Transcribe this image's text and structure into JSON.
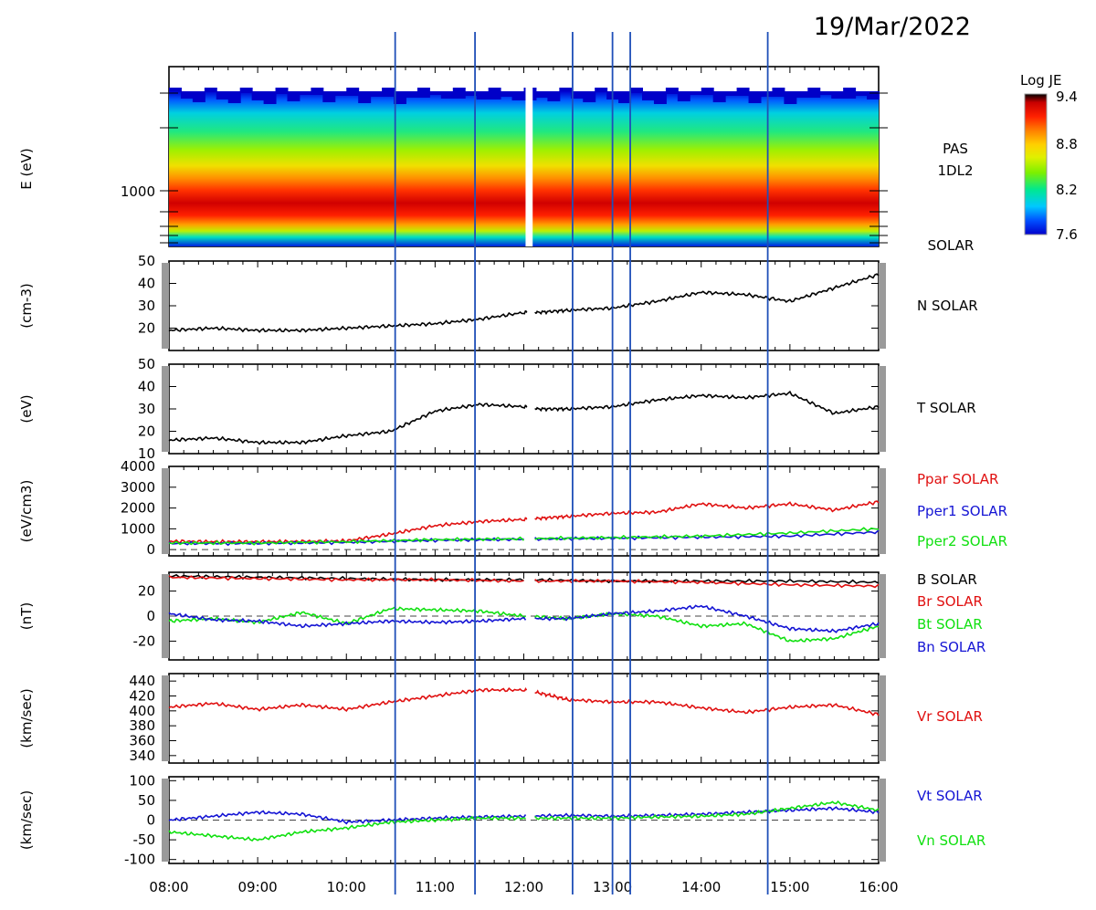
{
  "title": "19/Mar/2022",
  "x_axis": {
    "unit": "UT hours",
    "range": [
      8,
      16
    ],
    "ticks": [
      {
        "value": 8,
        "label": "08:00"
      },
      {
        "value": 9,
        "label": "09:00"
      },
      {
        "value": 10,
        "label": "10:00"
      },
      {
        "value": 11,
        "label": "11:00"
      },
      {
        "value": 12,
        "label": "12:00"
      },
      {
        "value": 13,
        "label": "13:00"
      },
      {
        "value": 14,
        "label": "14:00"
      },
      {
        "value": 15,
        "label": "15:00"
      },
      {
        "value": 16,
        "label": "16:00"
      }
    ]
  },
  "colorbar": {
    "title": "Log JE",
    "range": [
      7.6,
      9.4
    ],
    "ticks": [
      "9.4",
      "8.8",
      "8.2",
      "7.6"
    ],
    "colors": [
      "#0000cc",
      "#0050ff",
      "#00c8ff",
      "#00e890",
      "#7cf000",
      "#e0f000",
      "#ffd000",
      "#ff8000",
      "#ff2000",
      "#c80000",
      "#000000"
    ]
  },
  "vertical_markers": [
    10.55,
    11.45,
    12.55,
    13.0,
    13.2,
    14.75
  ],
  "chart_data": [
    {
      "type": "heatmap",
      "panel": "spectrogram",
      "ylabel": "E (eV)",
      "y_tick_labels": [
        "1000"
      ],
      "labels": [
        "PAS",
        "1DL2",
        "SOLAR"
      ],
      "color_range": [
        7.6,
        9.4
      ],
      "data_gap": [
        12.02,
        12.1
      ]
    },
    {
      "type": "line",
      "panel": "density",
      "ylabel": "(cm-3)",
      "ylim": [
        10,
        50
      ],
      "yticks": [
        20,
        30,
        40,
        50
      ],
      "series": [
        {
          "name": "N SOLAR",
          "color": "#000000",
          "x": [
            8.0,
            8.5,
            9.0,
            9.5,
            10.0,
            10.5,
            11.0,
            11.5,
            12.0,
            12.15,
            12.5,
            13.0,
            13.5,
            14.0,
            14.5,
            15.0,
            15.5,
            16.0
          ],
          "y": [
            19,
            20,
            19,
            19,
            20,
            21,
            22,
            24,
            27,
            27,
            28,
            29,
            32,
            36,
            35,
            32,
            38,
            44
          ]
        }
      ]
    },
    {
      "type": "line",
      "panel": "temperature",
      "ylabel": "(eV)",
      "ylim": [
        10,
        50
      ],
      "yticks": [
        10,
        20,
        30,
        40,
        50
      ],
      "series": [
        {
          "name": "T SOLAR",
          "color": "#000000",
          "x": [
            8.0,
            8.5,
            9.0,
            9.5,
            10.0,
            10.5,
            11.0,
            11.5,
            12.0,
            12.15,
            12.5,
            13.0,
            13.5,
            14.0,
            14.5,
            15.0,
            15.5,
            16.0
          ],
          "y": [
            16,
            17,
            15,
            15,
            18,
            20,
            29,
            32,
            31,
            30,
            30,
            31,
            34,
            36,
            35,
            37,
            28,
            31
          ]
        }
      ]
    },
    {
      "type": "line",
      "panel": "pressure",
      "ylabel": "(eV/cm3)",
      "ylim": [
        -300,
        4000
      ],
      "yticks": [
        0,
        1000,
        2000,
        3000,
        4000
      ],
      "series": [
        {
          "name": "Ppar SOLAR",
          "color": "#e01010",
          "x": [
            8.0,
            8.5,
            9.0,
            9.5,
            10.0,
            10.5,
            11.0,
            11.5,
            12.0,
            12.15,
            12.5,
            13.0,
            13.5,
            14.0,
            14.5,
            15.0,
            15.5,
            16.0
          ],
          "y": [
            400,
            380,
            380,
            390,
            420,
            750,
            1150,
            1350,
            1450,
            1500,
            1600,
            1750,
            1800,
            2200,
            2000,
            2200,
            1900,
            2300
          ]
        },
        {
          "name": "Pper1 SOLAR",
          "color": "#1414d4",
          "x": [
            8.0,
            9.0,
            10.0,
            11.0,
            12.0,
            13.0,
            14.0,
            15.0,
            16.0
          ],
          "y": [
            300,
            300,
            350,
            450,
            500,
            550,
            600,
            650,
            850
          ]
        },
        {
          "name": "Pper2 SOLAR",
          "color": "#10e010",
          "x": [
            8.0,
            9.0,
            10.0,
            11.0,
            12.0,
            13.0,
            14.0,
            15.0,
            16.0
          ],
          "y": [
            320,
            320,
            380,
            480,
            520,
            580,
            650,
            800,
            1000
          ]
        }
      ]
    },
    {
      "type": "line",
      "panel": "magnetic-field",
      "ylabel": "(nT)",
      "ylim": [
        -35,
        35
      ],
      "yticks": [
        -20,
        0,
        20
      ],
      "series": [
        {
          "name": "B SOLAR",
          "color": "#000000",
          "x": [
            8.0,
            9.0,
            10.0,
            11.0,
            12.0,
            13.0,
            14.0,
            15.0,
            16.0
          ],
          "y": [
            32,
            31,
            30,
            29,
            29,
            28,
            28,
            28,
            27
          ]
        },
        {
          "name": "Br SOLAR",
          "color": "#e01010",
          "x": [
            8.0,
            9.0,
            10.0,
            11.0,
            12.0,
            13.0,
            14.0,
            15.0,
            16.0
          ],
          "y": [
            31,
            30,
            29,
            29,
            28,
            28,
            27,
            25,
            24
          ]
        },
        {
          "name": "Bt SOLAR",
          "color": "#10e010",
          "x": [
            8.0,
            8.5,
            9.0,
            9.5,
            10.0,
            10.5,
            11.0,
            11.5,
            12.0,
            12.5,
            13.0,
            13.5,
            14.0,
            14.5,
            15.0,
            15.5,
            16.0
          ],
          "y": [
            -4,
            -2,
            -5,
            3,
            -6,
            6,
            5,
            4,
            0,
            -2,
            2,
            0,
            -8,
            -6,
            -20,
            -18,
            -8
          ]
        },
        {
          "name": "Bn SOLAR",
          "color": "#1414d4",
          "x": [
            8.0,
            8.5,
            9.0,
            9.5,
            10.0,
            10.5,
            11.0,
            11.5,
            12.0,
            12.5,
            13.0,
            13.5,
            14.0,
            14.5,
            15.0,
            15.5,
            16.0
          ],
          "y": [
            2,
            -3,
            -4,
            -8,
            -6,
            -4,
            -5,
            -4,
            -2,
            -2,
            2,
            4,
            8,
            0,
            -10,
            -12,
            -6
          ]
        }
      ]
    },
    {
      "type": "line",
      "panel": "radial-velocity",
      "ylabel": "(km/sec)",
      "ylim": [
        330,
        450
      ],
      "yticks": [
        340,
        360,
        380,
        400,
        420,
        440
      ],
      "series": [
        {
          "name": "Vr SOLAR",
          "color": "#e01010",
          "x": [
            8.0,
            8.5,
            9.0,
            9.5,
            10.0,
            10.5,
            11.0,
            11.5,
            12.0,
            12.25,
            12.5,
            13.0,
            13.5,
            14.0,
            14.5,
            15.0,
            15.5,
            16.0
          ],
          "y": [
            405,
            410,
            402,
            408,
            402,
            412,
            420,
            428,
            428,
            422,
            415,
            412,
            412,
            404,
            398,
            405,
            408,
            395
          ]
        }
      ]
    },
    {
      "type": "line",
      "panel": "transverse-velocity",
      "ylabel": "(km/sec)",
      "ylim": [
        -110,
        110
      ],
      "yticks": [
        -100,
        -50,
        0,
        50,
        100
      ],
      "series": [
        {
          "name": "Vt SOLAR",
          "color": "#1414d4",
          "x": [
            8.0,
            8.5,
            9.0,
            9.5,
            10.0,
            10.5,
            11.0,
            11.5,
            12.0,
            12.5,
            13.0,
            13.5,
            14.0,
            14.5,
            15.0,
            15.5,
            16.0
          ],
          "y": [
            0,
            10,
            20,
            15,
            -5,
            0,
            5,
            8,
            10,
            12,
            10,
            12,
            15,
            20,
            25,
            30,
            20
          ]
        },
        {
          "name": "Vn SOLAR",
          "color": "#10e010",
          "x": [
            8.0,
            8.5,
            9.0,
            9.5,
            10.0,
            10.5,
            11.0,
            11.5,
            12.0,
            12.5,
            13.0,
            13.5,
            14.0,
            14.5,
            15.0,
            15.5,
            16.0
          ],
          "y": [
            -30,
            -40,
            -50,
            -30,
            -20,
            -5,
            0,
            5,
            5,
            5,
            5,
            8,
            10,
            15,
            30,
            45,
            25
          ]
        }
      ]
    }
  ]
}
